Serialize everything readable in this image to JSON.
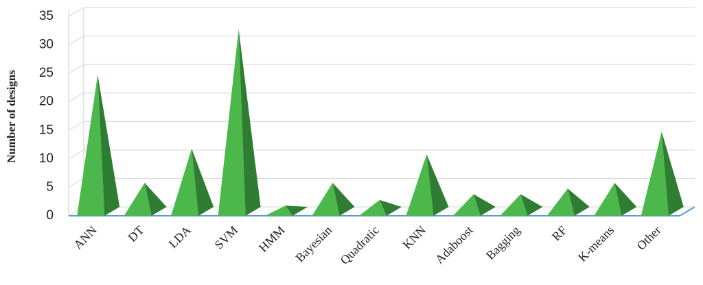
{
  "chart_data": {
    "type": "pyramid",
    "y_label": "Number of designs",
    "categories": [
      "ANN",
      "DT",
      "LDA",
      "SVM",
      "HMM",
      "Bayesian",
      "Quadratic",
      "KNN",
      "Adaboost",
      "Bagging",
      "RF",
      "K-means",
      "Other"
    ],
    "values": [
      24,
      5,
      11,
      32,
      1,
      5,
      2,
      10,
      3,
      3,
      4,
      5,
      14
    ],
    "color": "#4cb84c",
    "ylim": [
      0,
      35
    ],
    "yticks": [
      0,
      5,
      10,
      15,
      20,
      25,
      30,
      35
    ],
    "grid": true
  }
}
